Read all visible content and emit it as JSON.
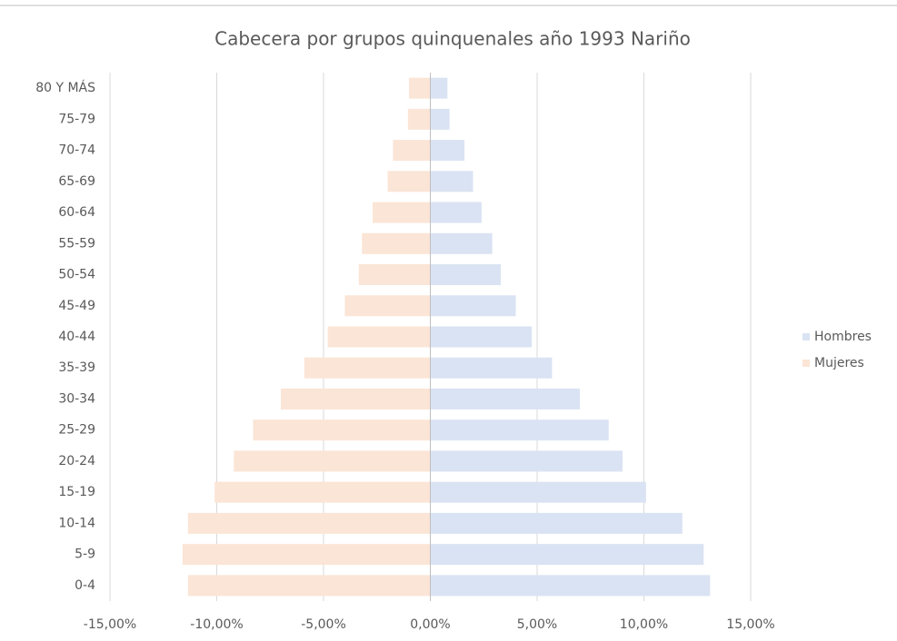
{
  "chart_data": {
    "type": "bar",
    "orientation": "horizontal",
    "title": "Cabecera por grupos quinquenales año 1993 Nariño",
    "categories": [
      "0-4",
      "5-9",
      "10-14",
      "15-19",
      "20-24",
      "25-29",
      "30-34",
      "35-39",
      "40-44",
      "45-49",
      "50-54",
      "55-59",
      "60-64",
      "65-69",
      "70-74",
      "75-79",
      "80 Y MÁS"
    ],
    "series": [
      {
        "name": "Hombres",
        "color": "#dae3f3",
        "values": [
          13.1,
          12.8,
          11.8,
          10.1,
          9.0,
          8.35,
          7.0,
          5.7,
          4.75,
          4.0,
          3.3,
          2.9,
          2.4,
          2.0,
          1.6,
          0.9,
          0.8
        ]
      },
      {
        "name": "Mujeres",
        "color": "#fbe5d6",
        "values": [
          -11.35,
          -11.6,
          -11.35,
          -10.1,
          -9.2,
          -8.3,
          -7.0,
          -5.9,
          -4.8,
          -4.0,
          -3.35,
          -3.2,
          -2.7,
          -2.0,
          -1.75,
          -1.05,
          -1.0
        ]
      }
    ],
    "xlim": [
      -15,
      15
    ],
    "xticks": [
      {
        "value": -15,
        "label": "-15,00%"
      },
      {
        "value": -10,
        "label": "-10,00%"
      },
      {
        "value": -5,
        "label": "-5,00%"
      },
      {
        "value": 0,
        "label": "0,00%"
      },
      {
        "value": 5,
        "label": "5,00%"
      },
      {
        "value": 10,
        "label": "10,00%"
      },
      {
        "value": 15,
        "label": "15,00%"
      }
    ],
    "grid": true,
    "legend": "right"
  }
}
